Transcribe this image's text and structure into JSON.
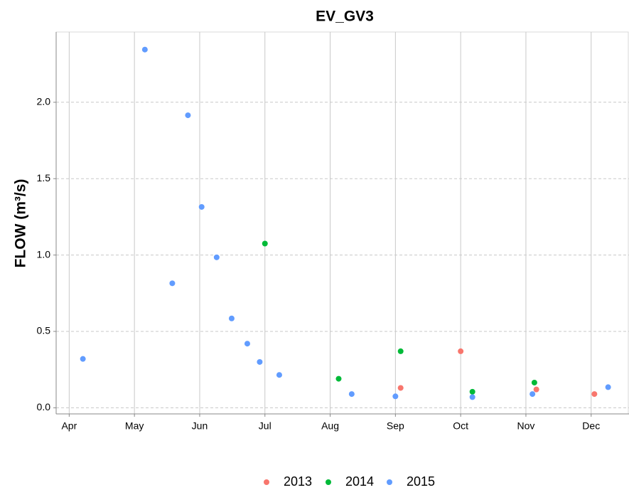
{
  "chart_data": {
    "type": "scatter",
    "title": "EV_GV3",
    "y_label": "FLOW (m³/s)",
    "xlim": [
      3.8,
      12.58
    ],
    "ylim": [
      -0.04,
      2.46
    ],
    "xticks": [
      {
        "value": 4,
        "label": "Apr"
      },
      {
        "value": 5,
        "label": "May"
      },
      {
        "value": 6,
        "label": "Jun"
      },
      {
        "value": 7,
        "label": "Jul"
      },
      {
        "value": 8,
        "label": "Aug"
      },
      {
        "value": 9,
        "label": "Sep"
      },
      {
        "value": 10,
        "label": "Oct"
      },
      {
        "value": 11,
        "label": "Nov"
      },
      {
        "value": 12,
        "label": "Dec"
      }
    ],
    "yticks": [
      {
        "value": 0,
        "label": "0.0"
      },
      0.5,
      {
        "value": 1,
        "label": "1.0"
      },
      1.5,
      {
        "value": 2,
        "label": "2.0"
      }
    ],
    "grid": true,
    "legend": "bottom",
    "series": [
      {
        "name": "2013",
        "color": "#f8766d",
        "x": [
          9.08,
          10.0,
          11.16,
          12.05
        ],
        "values": [
          0.13,
          0.37,
          0.12,
          0.09
        ]
      },
      {
        "name": "2014",
        "color": "#00ba38",
        "x": [
          7.0,
          8.13,
          9.08,
          10.18,
          11.13
        ],
        "values": [
          1.075,
          0.19,
          0.37,
          0.105,
          0.165
        ]
      },
      {
        "name": "2015",
        "color": "#619cff",
        "x": [
          4.21,
          5.16,
          5.58,
          5.82,
          6.03,
          6.26,
          6.49,
          6.73,
          6.92,
          7.22,
          8.33,
          9.0,
          10.18,
          11.1,
          12.26
        ],
        "values": [
          0.32,
          2.345,
          0.815,
          1.915,
          1.315,
          0.985,
          0.585,
          0.42,
          0.3,
          0.215,
          0.09,
          0.075,
          0.07,
          0.09,
          0.135
        ]
      }
    ]
  }
}
